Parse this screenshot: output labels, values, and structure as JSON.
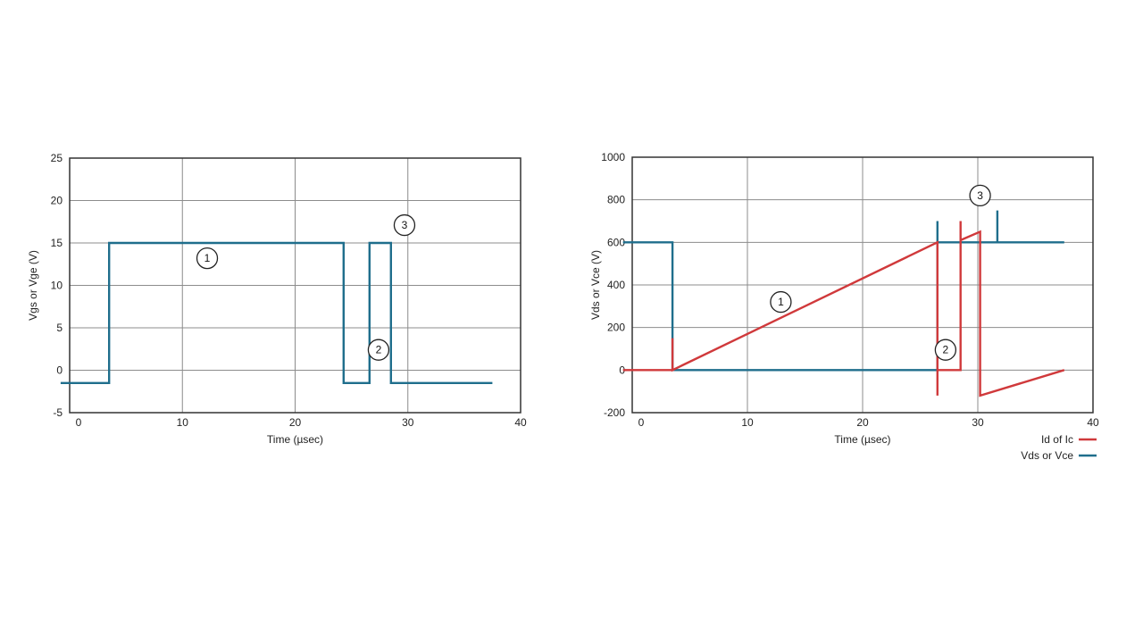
{
  "colors": {
    "gate": "#1f6e8c",
    "vds": "#1f6e8c",
    "id": "#d0393b",
    "grid": "#8c8c8c",
    "frame": "#333333"
  },
  "chart_data": [
    {
      "type": "line",
      "xlabel": "Time (µsec)",
      "ylabel": "Vgs or Vge (V)",
      "xlim": [
        0,
        40
      ],
      "ylim": [
        -5,
        25
      ],
      "xticks": [
        0,
        10,
        20,
        30,
        40
      ],
      "yticks": [
        25,
        20,
        15,
        10,
        5,
        0,
        -5
      ],
      "grid": true,
      "series": [
        {
          "color": "#1f6e8c",
          "x": [
            -0.8,
            3.5,
            3.5,
            24.3,
            24.3,
            26.6,
            26.6,
            28.5,
            28.5,
            30.6,
            30.6,
            37.5
          ],
          "y": [
            -1.5,
            -1.5,
            15,
            15,
            -1.5,
            -1.5,
            15,
            15,
            -1.5,
            -1.5,
            -1.5,
            -1.5
          ]
        }
      ],
      "annotations": [
        {
          "text": "1",
          "x": 12.2,
          "y": 13.2
        },
        {
          "text": "2",
          "x": 27.4,
          "y": 2.4
        },
        {
          "text": "3",
          "x": 29.7,
          "y": 17.1
        }
      ]
    },
    {
      "type": "line",
      "xlabel": "Time (µsec)",
      "ylabel": "Vds or Vce (V)",
      "xlim": [
        0,
        40
      ],
      "ylim": [
        -200,
        1000
      ],
      "xticks": [
        0,
        10,
        20,
        30,
        40
      ],
      "yticks": [
        1000,
        800,
        600,
        400,
        200,
        0,
        -200
      ],
      "grid": true,
      "series": [
        {
          "name": "Vds or Vce",
          "color": "#1f6e8c",
          "x": [
            -0.8,
            3.5,
            3.5,
            26.5,
            26.5,
            26.5,
            29.2,
            29.2,
            29.2,
            31.7,
            31.7,
            31.7,
            37.5
          ],
          "y": [
            600,
            600,
            0,
            0,
            700,
            600,
            600,
            600,
            600,
            600,
            750,
            600,
            600
          ]
        },
        {
          "name": "Id of Ic",
          "color": "#d0393b",
          "x": [
            -0.8,
            3.5,
            3.5,
            3.5,
            26.5,
            26.5,
            26.5,
            28.5,
            28.5,
            28.5,
            30.2,
            30.2,
            37.5
          ],
          "y": [
            0,
            0,
            150,
            0,
            600,
            -120,
            0,
            0,
            700,
            610,
            650,
            -120,
            0
          ]
        }
      ],
      "annotations": [
        {
          "text": "1",
          "x": 12.9,
          "y": 320
        },
        {
          "text": "2",
          "x": 27.2,
          "y": 95
        },
        {
          "text": "3",
          "x": 30.2,
          "y": 820
        }
      ],
      "legend": {
        "placement": "bottom-right",
        "entries": [
          "Id of Ic",
          "Vds or Vce"
        ]
      }
    }
  ]
}
